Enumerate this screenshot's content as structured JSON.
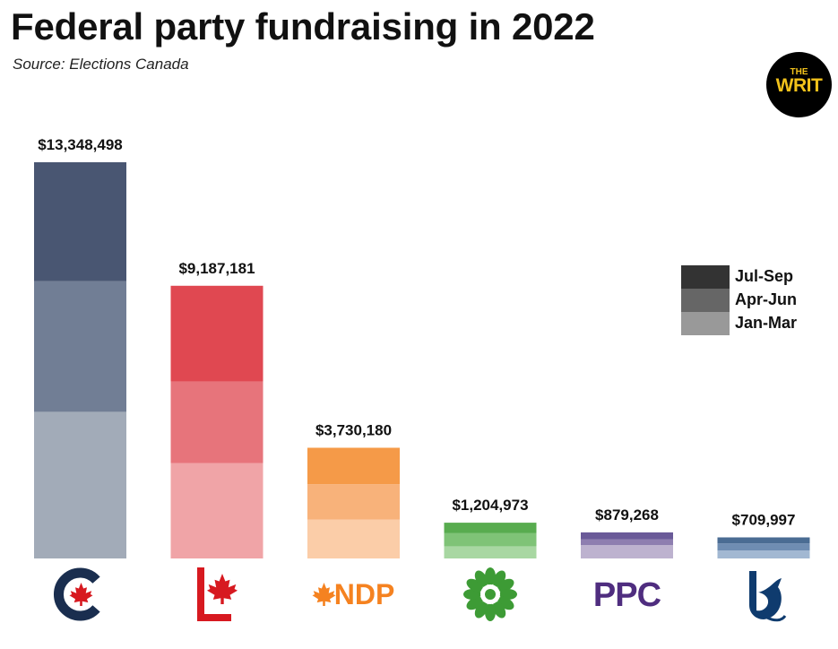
{
  "header": {
    "title": "Federal party fundraising in 2022",
    "subtitle": "Source: Elections Canada"
  },
  "brand_logo": {
    "text_small": "THE",
    "text_big": "WRIT"
  },
  "legend": {
    "items": [
      {
        "label": "Jul-Sep",
        "color": "#333333"
      },
      {
        "label": "Apr-Jun",
        "color": "#666666"
      },
      {
        "label": "Jan-Mar",
        "color": "#999999"
      }
    ]
  },
  "party_logos": [
    {
      "icon": "conservative-logo-icon",
      "color": "#1a2e4f",
      "accent": "#d71920"
    },
    {
      "icon": "liberal-logo-icon",
      "color": "#d71920"
    },
    {
      "icon": "ndp-logo-icon",
      "text": "NDP",
      "color": "#f58220"
    },
    {
      "icon": "green-party-logo-icon",
      "color": "#3d9b35"
    },
    {
      "icon": "ppc-logo-icon",
      "text": "PPC",
      "color": "#4f2d7f"
    },
    {
      "icon": "bloc-quebecois-logo-icon",
      "color": "#0f3b6e"
    }
  ],
  "chart_data": {
    "type": "bar",
    "stacked": true,
    "title": "Federal party fundraising in 2022",
    "ylim": [
      0,
      13348498
    ],
    "categories": [
      "Conservative",
      "Liberal",
      "NDP",
      "Green",
      "PPC",
      "Bloc Québécois"
    ],
    "totals": [
      13348498,
      9187181,
      3730180,
      1204973,
      879268,
      709997
    ],
    "total_labels": [
      "$13,348,498",
      "$9,187,181",
      "$3,730,180",
      "$1,204,973",
      "$879,268",
      "$709,997"
    ],
    "series": [
      {
        "name": "Jan-Mar",
        "values": [
          4940000,
          3210000,
          1310000,
          410000,
          450000,
          270000
        ]
      },
      {
        "name": "Apr-Jun",
        "values": [
          4400000,
          2750000,
          1190000,
          440000,
          190000,
          240000
        ]
      },
      {
        "name": "Jul-Sep",
        "values": [
          4008498,
          3227181,
          1230180,
          354973,
          239268,
          199997
        ]
      }
    ],
    "colors": [
      [
        "#a2abb8",
        "#717e95",
        "#495672"
      ],
      [
        "#f0a4a7",
        "#e7747b",
        "#e04851"
      ],
      [
        "#fbcda8",
        "#f8b27a",
        "#f59a48"
      ],
      [
        "#a8d7a2",
        "#7fc377",
        "#58ac4f"
      ],
      [
        "#bdb2cf",
        "#8e7eb0",
        "#6a5a98"
      ],
      [
        "#a2b8d2",
        "#6f8db2",
        "#4a6c93"
      ]
    ],
    "legend_position": "right",
    "grid": false
  }
}
